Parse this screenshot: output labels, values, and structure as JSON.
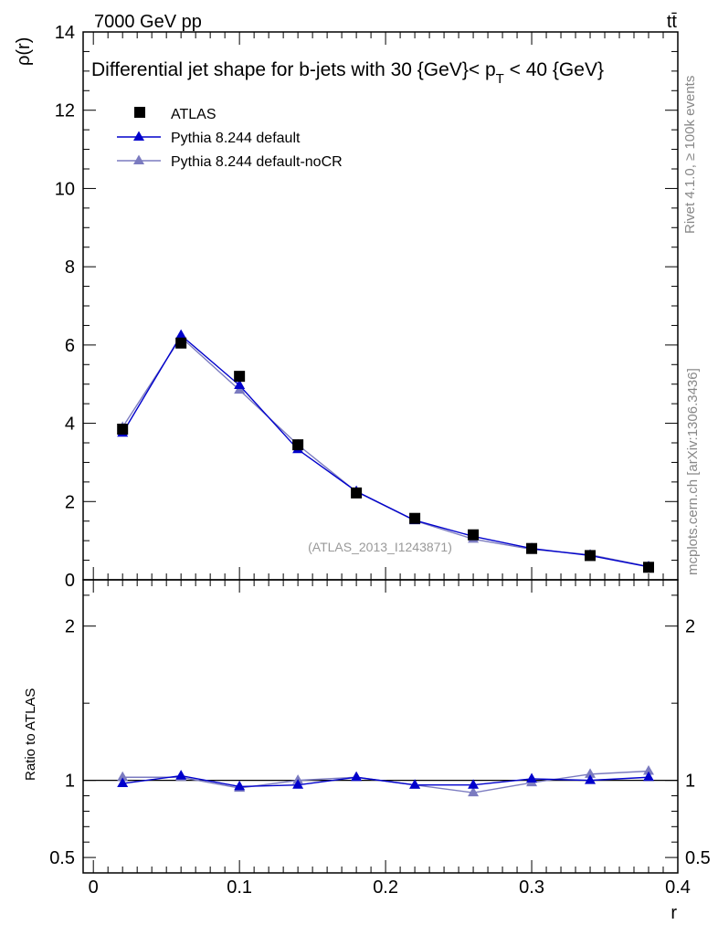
{
  "header": {
    "energy_label": "7000 GeV pp",
    "process_label": "tt̄"
  },
  "side_labels": {
    "rivet": "Rivet 4.1.0, ≥ 100k events",
    "mcplots": "mcplots.cern.ch [arXiv:1306.3436]"
  },
  "chart_data": [
    {
      "type": "scatter",
      "panel": "main",
      "title": "Differential jet shape for b-jets with 30 {GeV}< p_T < 40 {GeV}",
      "title_parts": {
        "pre": "Differential jet shape for b-jets with 30 {GeV}< p",
        "sub": "T",
        "post": " < 40 {GeV}"
      },
      "watermark": "(ATLAS_2013_I1243871)",
      "xlabel": "",
      "ylabel": "ρ(r)",
      "xlim": [
        -0.007,
        0.4
      ],
      "ylim": [
        0,
        14
      ],
      "yticks": [
        0,
        2,
        4,
        6,
        8,
        10,
        12,
        14
      ],
      "ytick_labels": [
        "0",
        "2",
        "4",
        "6",
        "8",
        "10",
        "12",
        "14"
      ],
      "legend_position": "top-left",
      "x": [
        0.02,
        0.06,
        0.1,
        0.14,
        0.18,
        0.22,
        0.26,
        0.3,
        0.34,
        0.38
      ],
      "series": [
        {
          "name": "ATLAS",
          "marker": "square",
          "color": "#000000",
          "values": [
            3.85,
            6.05,
            5.2,
            3.45,
            2.22,
            1.57,
            1.15,
            0.8,
            0.62,
            0.32
          ]
        },
        {
          "name": "Pythia 8.244 default",
          "marker": "triangle",
          "color": "#0000cc",
          "values": [
            3.75,
            6.25,
            4.97,
            3.33,
            2.26,
            1.52,
            1.11,
            0.8,
            0.62,
            0.33
          ]
        },
        {
          "name": "Pythia 8.244 default-noCR",
          "marker": "triangle",
          "color": "#7b7bc0",
          "values": [
            3.9,
            6.2,
            4.85,
            3.45,
            2.25,
            1.51,
            1.04,
            0.78,
            0.64,
            0.34
          ]
        }
      ]
    },
    {
      "type": "line",
      "panel": "ratio",
      "xlabel": "r",
      "ylabel": "Ratio to ATLAS",
      "xlim": [
        -0.007,
        0.4
      ],
      "ylim": [
        0.4,
        2.3
      ],
      "yticks": [
        0.5,
        1,
        2
      ],
      "ytick_labels": [
        "0.5",
        "1",
        "2"
      ],
      "xticks": [
        0,
        0.1,
        0.2,
        0.3,
        0.4
      ],
      "xtick_labels": [
        "0",
        "0.1",
        "0.2",
        "0.3",
        "0.4"
      ],
      "reference_line": 1,
      "x": [
        0.02,
        0.06,
        0.1,
        0.14,
        0.18,
        0.22,
        0.26,
        0.3,
        0.34,
        0.38
      ],
      "series": [
        {
          "name": "Pythia 8.244 default",
          "color": "#0000cc",
          "values": [
            0.98,
            1.03,
            0.96,
            0.97,
            1.02,
            0.97,
            0.97,
            1.01,
            1.0,
            1.02
          ]
        },
        {
          "name": "Pythia 8.244 default-noCR",
          "color": "#7b7bc0",
          "values": [
            1.02,
            1.02,
            0.95,
            1.0,
            1.02,
            0.97,
            0.92,
            0.985,
            1.04,
            1.06
          ]
        }
      ]
    }
  ]
}
